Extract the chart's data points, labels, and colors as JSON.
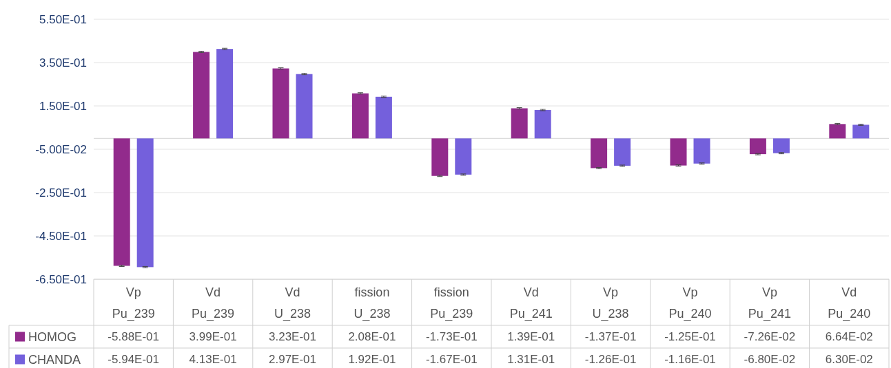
{
  "chart_data": {
    "type": "bar",
    "categories": [
      "Vp Pu_239",
      "Vd Pu_239",
      "Vd U_238",
      "fission U_238",
      "fission Pu_239",
      "Vd Pu_241",
      "Vp U_238",
      "Vp Pu_240",
      "Vp Pu_241",
      "Vd Pu_240"
    ],
    "series": [
      {
        "name": "HOMOG",
        "color": "#922b8c",
        "values": [
          -0.588,
          0.399,
          0.323,
          0.208,
          -0.173,
          0.139,
          -0.137,
          -0.125,
          -0.0726,
          0.0664
        ],
        "errors": [
          0.003,
          0.003,
          0.003,
          0.003,
          0.003,
          0.003,
          0.003,
          0.003,
          0.003,
          0.003
        ],
        "value_labels": [
          "-5.88E-01",
          "3.99E-01",
          "3.23E-01",
          "2.08E-01",
          "-1.73E-01",
          "1.39E-01",
          "-1.37E-01",
          "-1.25E-01",
          "-7.26E-02",
          "6.64E-02"
        ]
      },
      {
        "name": "CHANDA",
        "color": "#7460dc",
        "values": [
          -0.594,
          0.413,
          0.297,
          0.192,
          -0.167,
          0.131,
          -0.126,
          -0.116,
          -0.068,
          0.063
        ],
        "errors": [
          0.003,
          0.003,
          0.003,
          0.003,
          0.003,
          0.003,
          0.003,
          0.003,
          0.003,
          0.003
        ],
        "value_labels": [
          "-5.94E-01",
          "4.13E-01",
          "2.97E-01",
          "1.92E-01",
          "-1.67E-01",
          "1.31E-01",
          "-1.26E-01",
          "-1.16E-01",
          "-6.80E-02",
          "6.30E-02"
        ]
      }
    ],
    "ylim": [
      -0.65,
      0.55
    ],
    "yticks": [
      {
        "value": -0.65,
        "label": "-6.50E-01"
      },
      {
        "value": -0.45,
        "label": "-4.50E-01"
      },
      {
        "value": -0.25,
        "label": "-2.50E-01"
      },
      {
        "value": -0.05,
        "label": "-5.00E-02"
      },
      {
        "value": 0.15,
        "label": "1.50E-01"
      },
      {
        "value": 0.35,
        "label": "3.50E-01"
      },
      {
        "value": 0.55,
        "label": "5.50E-01"
      }
    ],
    "grid": "y",
    "legend": "bottom"
  }
}
